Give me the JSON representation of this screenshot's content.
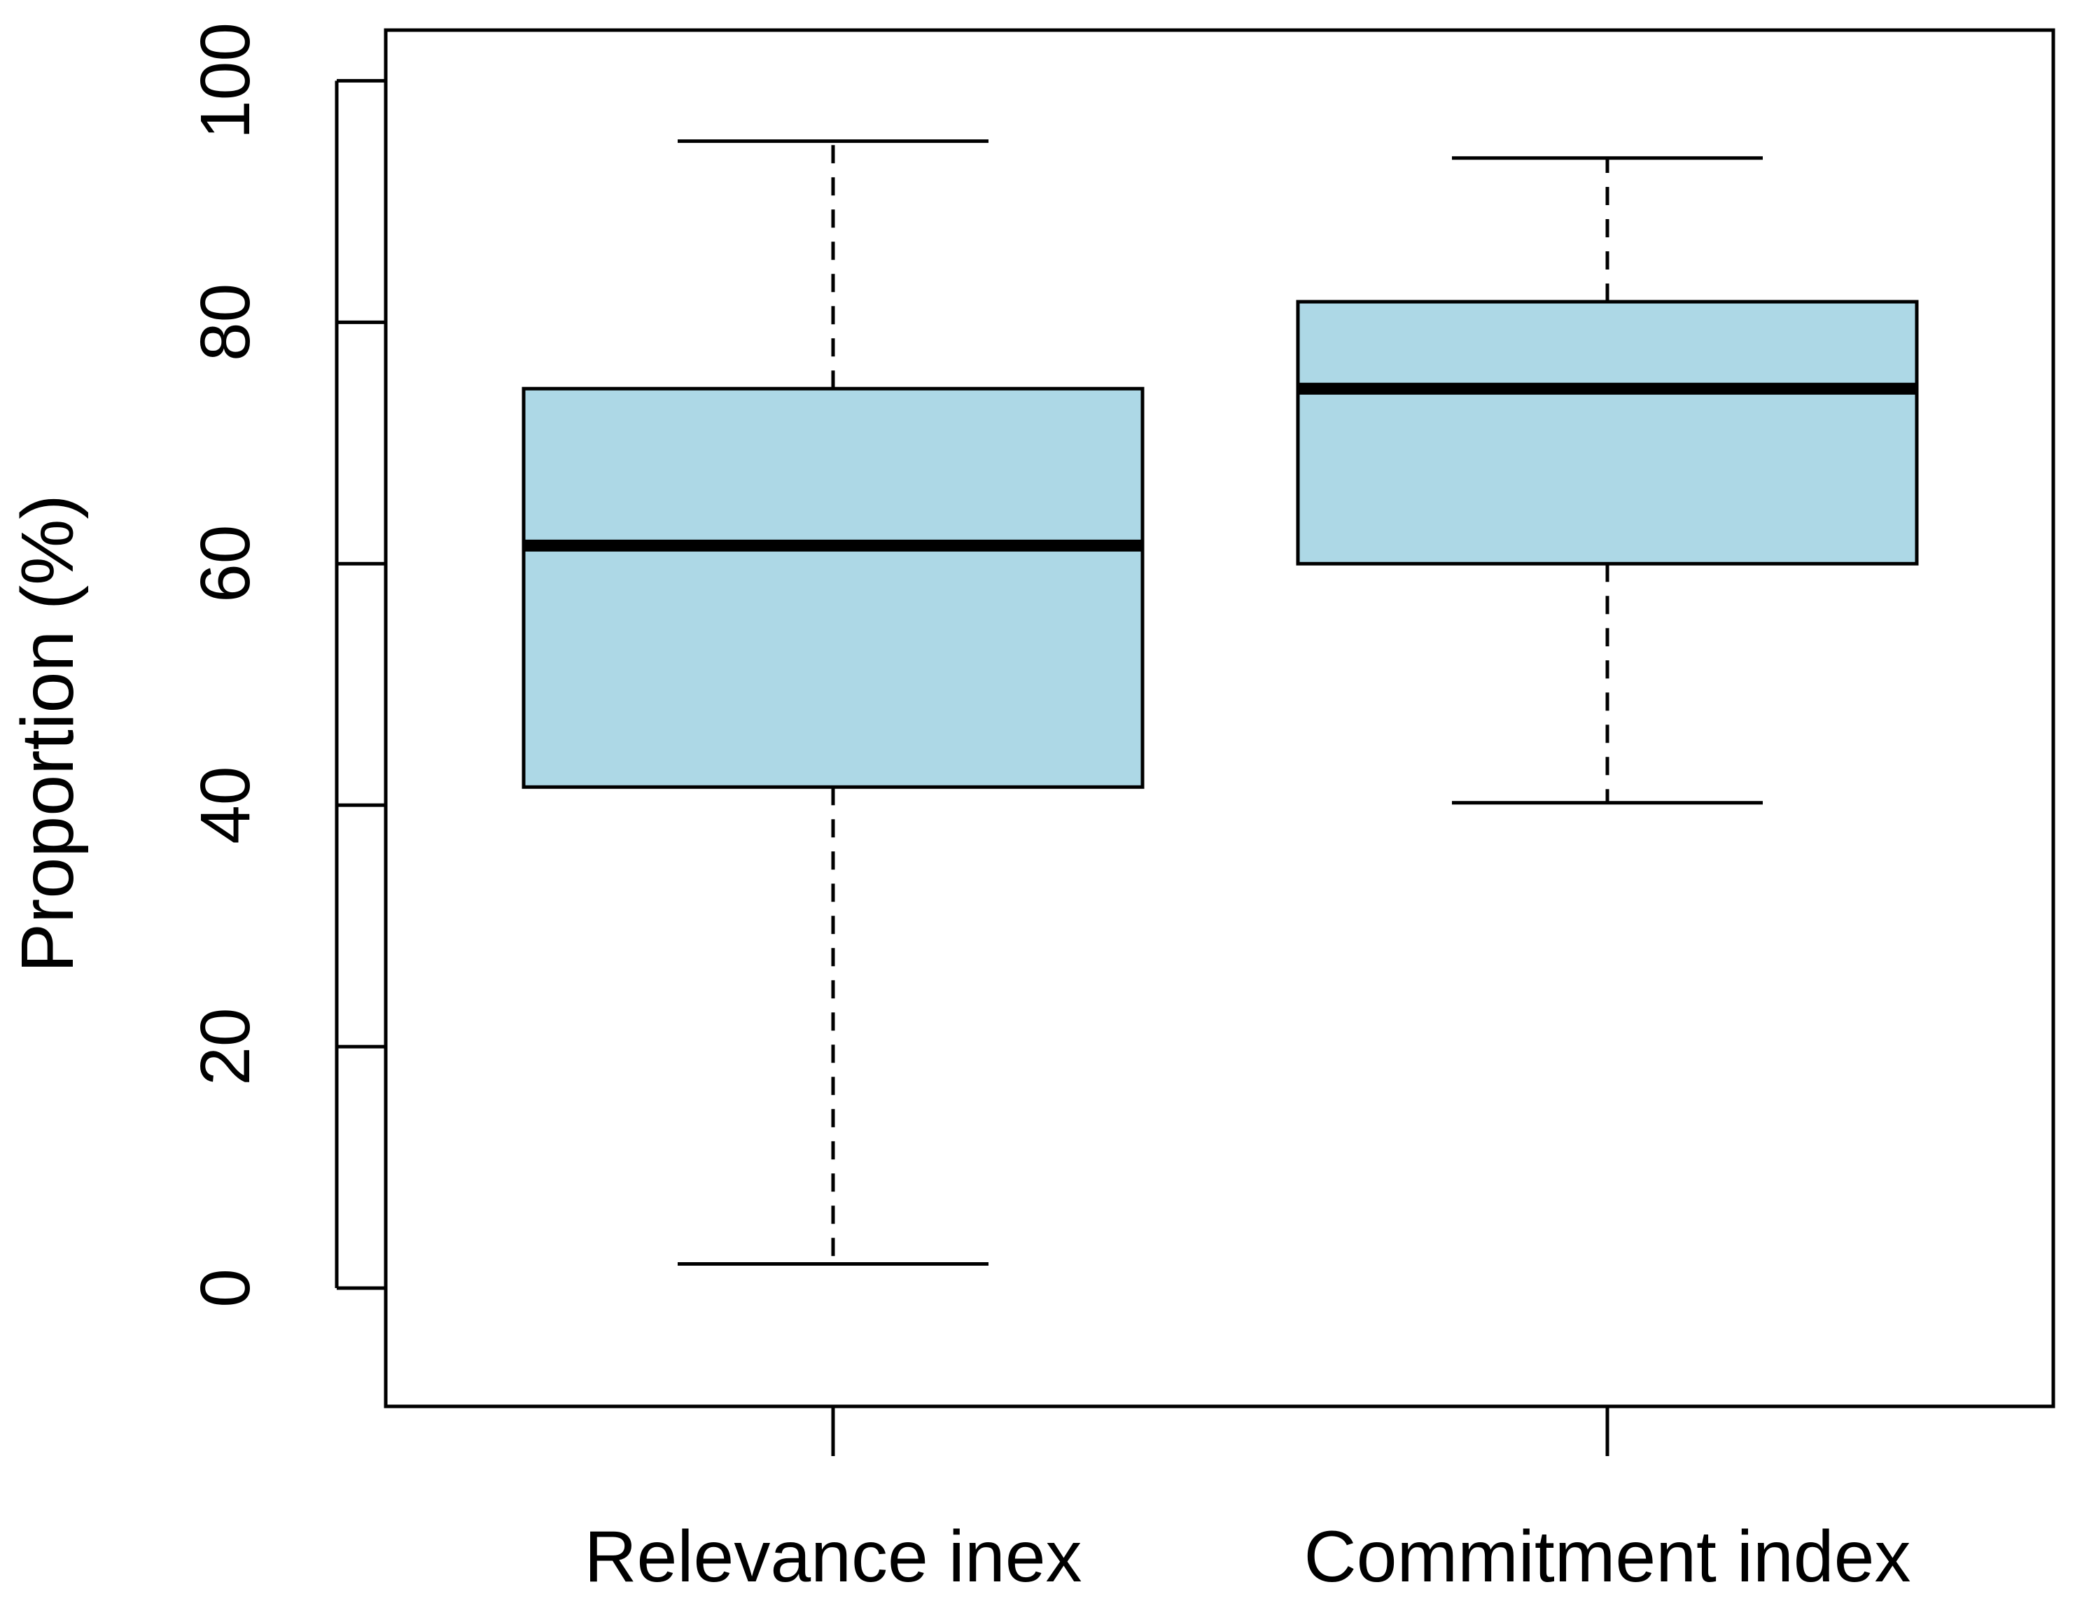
{
  "chart_data": {
    "type": "box",
    "title": "",
    "xlabel": "",
    "ylabel": "Proportion (%)",
    "ylim": [
      -9.8,
      104.2
    ],
    "yticks": [
      "0",
      "20",
      "40",
      "60",
      "80",
      "100"
    ],
    "grid": false,
    "categories": [
      "Relevance inex",
      "Commitment index"
    ],
    "boxes": [
      {
        "min": 2,
        "q1": 41.5,
        "median": 61.5,
        "q3": 74.5,
        "max": 95
      },
      {
        "min": 40.2,
        "q1": 60,
        "median": 74.5,
        "q3": 81.7,
        "max": 93.6
      }
    ],
    "colors": {
      "box_fill": "#add8e6",
      "stroke": "#000000"
    }
  }
}
